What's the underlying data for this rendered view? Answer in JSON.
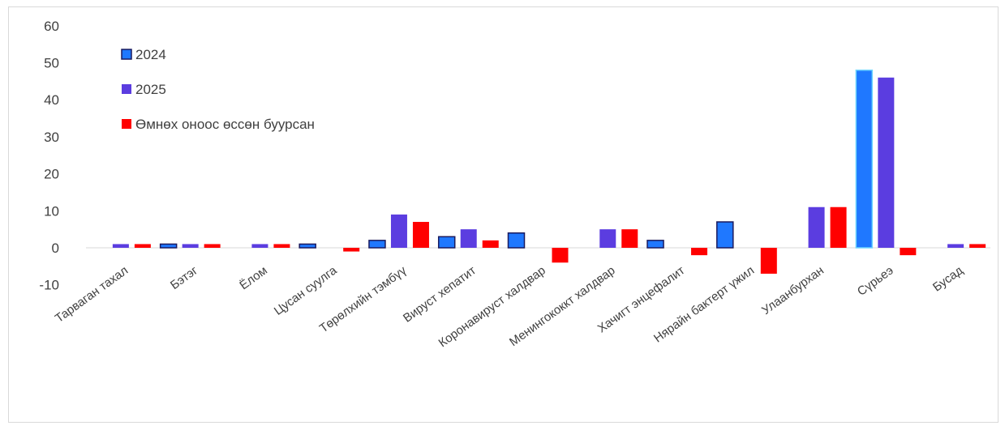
{
  "chart_data": {
    "type": "bar",
    "categories": [
      "Тарваган тахал",
      "Бэтэг",
      "Ёлом",
      "Цусан суулга",
      "Төрөлхийн тэмбүү",
      "Вируст хепатит",
      "Коронавируст халдвар",
      "Менингококкт халдвар",
      "Хачигт энцефалит",
      "Нярайн бактерт үжил",
      "Улаанбурхан",
      "Сүрьеэ",
      "Бусад"
    ],
    "series": [
      {
        "name": "2024",
        "color": "#1f78ff",
        "values": [
          0,
          1,
          0,
          1,
          2,
          3,
          4,
          0,
          2,
          7,
          0,
          48,
          0
        ]
      },
      {
        "name": "2025",
        "color": "#5b3de0",
        "values": [
          1,
          1,
          1,
          0,
          9,
          5,
          0,
          5,
          0,
          0,
          11,
          46,
          1
        ]
      },
      {
        "name": "Өмнөх оноос өссөн буурсан",
        "color": "#ff0000",
        "values": [
          1,
          1,
          1,
          -1,
          7,
          2,
          -4,
          5,
          -2,
          -7,
          11,
          -2,
          1
        ]
      }
    ],
    "ylim": [
      -10,
      60
    ],
    "yticks": [
      -10,
      0,
      10,
      20,
      30,
      40,
      50,
      60
    ],
    "grid": false,
    "legend_position": "top-left"
  }
}
